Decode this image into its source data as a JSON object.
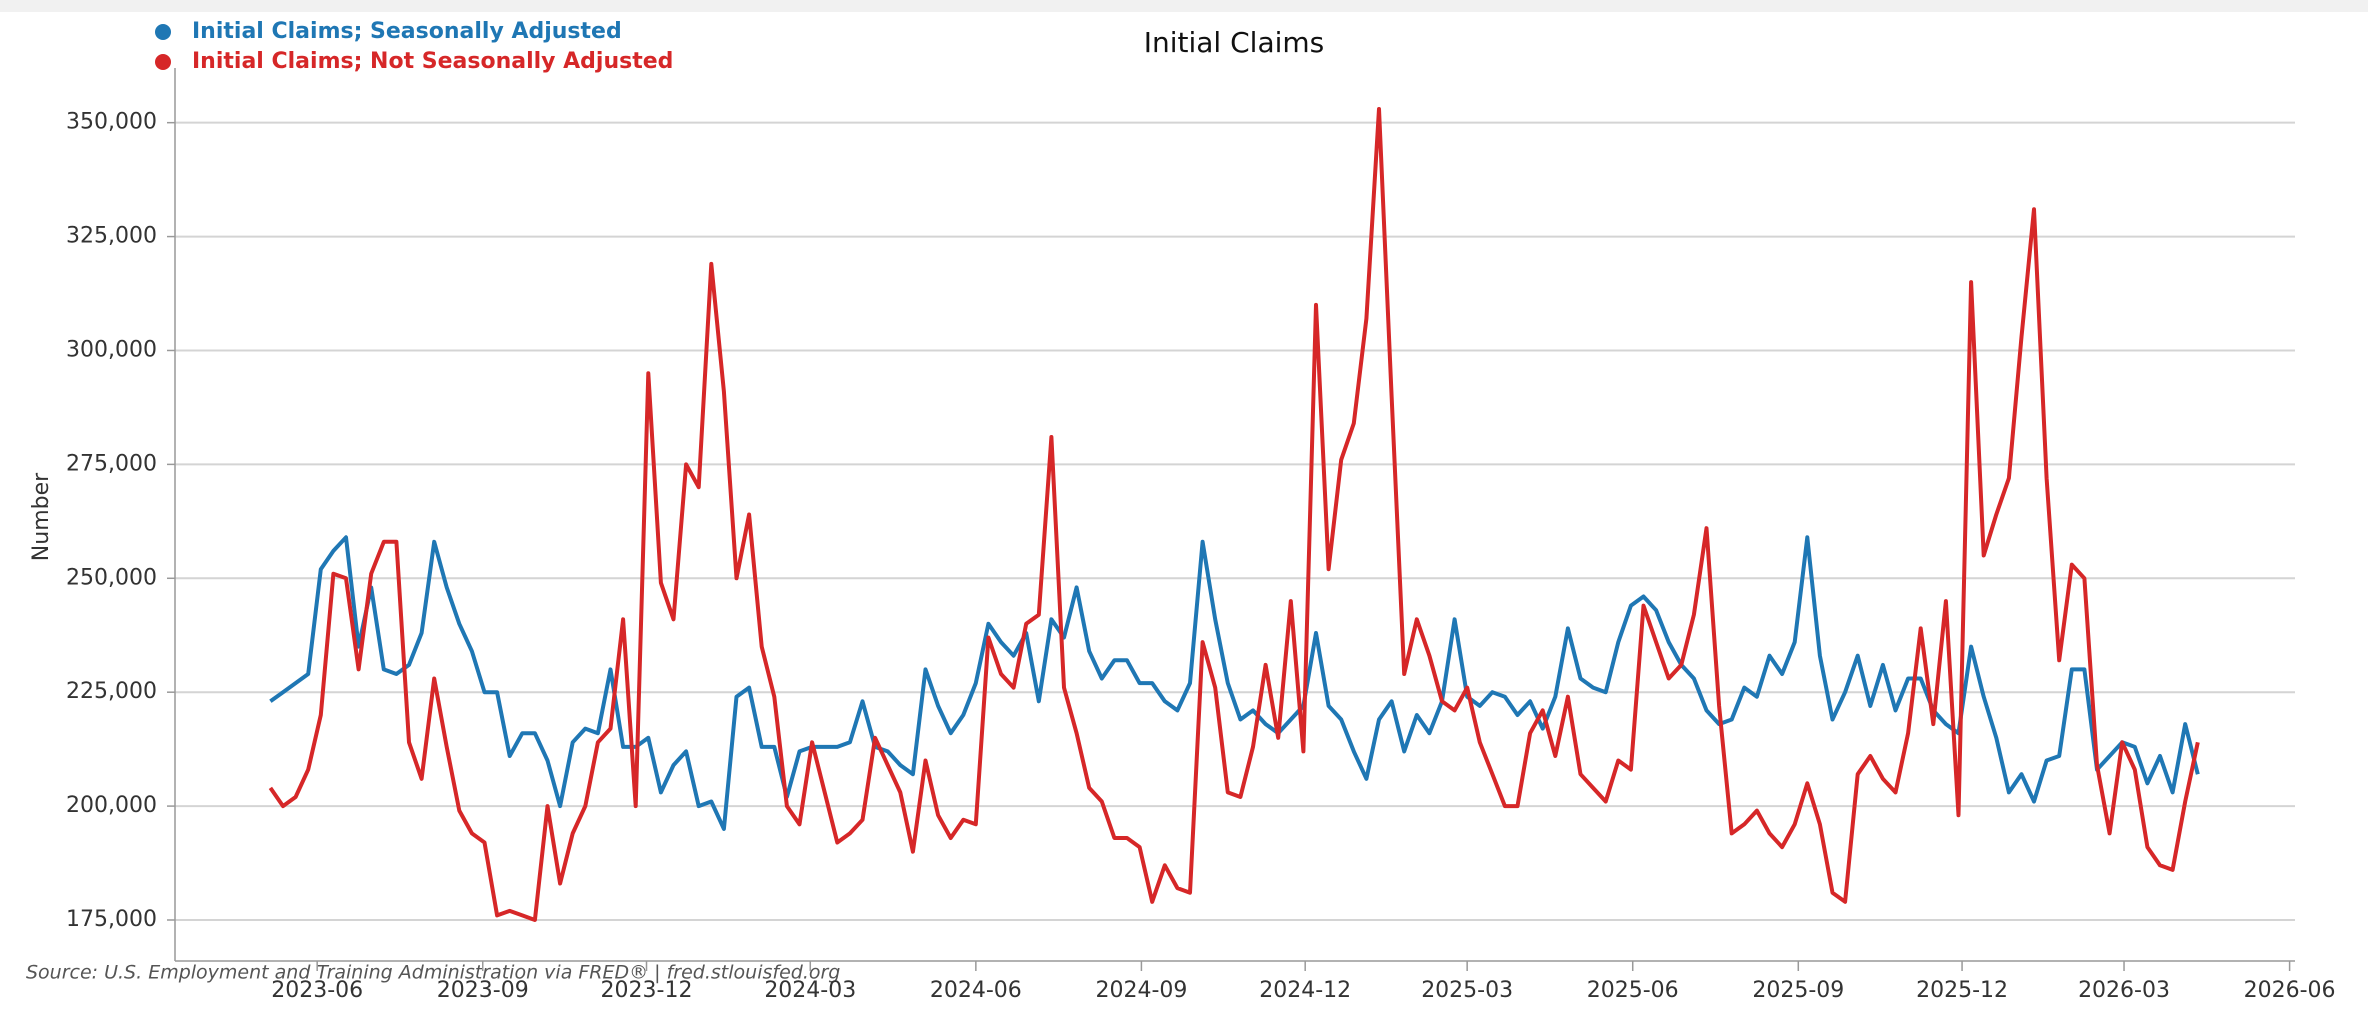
{
  "chart_data": {
    "type": "line",
    "title": "Initial Claims",
    "y_label": "Number",
    "source": "Source: U.S. Employment and Training Administration via FRED®  |  fred.stlouisfed.org",
    "x": [
      "2023-05-06",
      "2023-05-13",
      "2023-05-20",
      "2023-05-27",
      "2023-06-03",
      "2023-06-10",
      "2023-06-17",
      "2023-06-24",
      "2023-07-01",
      "2023-07-08",
      "2023-07-15",
      "2023-07-22",
      "2023-07-29",
      "2023-08-05",
      "2023-08-12",
      "2023-08-19",
      "2023-08-26",
      "2023-09-02",
      "2023-09-09",
      "2023-09-16",
      "2023-09-23",
      "2023-09-30",
      "2023-10-07",
      "2023-10-14",
      "2023-10-21",
      "2023-10-28",
      "2023-11-04",
      "2023-11-11",
      "2023-11-18",
      "2023-11-25",
      "2023-12-02",
      "2023-12-09",
      "2023-12-16",
      "2023-12-23",
      "2023-12-30",
      "2024-01-06",
      "2024-01-13",
      "2024-01-20",
      "2024-01-27",
      "2024-02-03",
      "2024-02-10",
      "2024-02-17",
      "2024-02-24",
      "2024-03-02",
      "2024-03-09",
      "2024-03-16",
      "2024-03-23",
      "2024-03-30",
      "2024-04-06",
      "2024-04-13",
      "2024-04-20",
      "2024-04-27",
      "2024-05-04",
      "2024-05-11",
      "2024-05-18",
      "2024-05-25",
      "2024-06-01",
      "2024-06-08",
      "2024-06-15",
      "2024-06-22",
      "2024-06-29",
      "2024-07-06",
      "2024-07-13",
      "2024-07-20",
      "2024-07-27",
      "2024-08-03",
      "2024-08-10",
      "2024-08-17",
      "2024-08-24",
      "2024-08-31",
      "2024-09-07",
      "2024-09-14",
      "2024-09-21",
      "2024-09-28",
      "2024-10-05",
      "2024-10-12",
      "2024-10-19",
      "2024-10-26",
      "2024-11-02",
      "2024-11-09",
      "2024-11-16",
      "2024-11-23",
      "2024-11-30",
      "2024-12-07",
      "2024-12-14",
      "2024-12-21",
      "2024-12-28",
      "2025-01-04",
      "2025-01-11",
      "2025-01-18",
      "2025-01-25",
      "2025-02-01",
      "2025-02-08",
      "2025-02-15",
      "2025-02-22",
      "2025-03-01",
      "2025-03-08",
      "2025-03-15",
      "2025-03-22",
      "2025-03-29",
      "2025-04-05",
      "2025-04-12",
      "2025-04-19",
      "2025-04-26",
      "2025-05-03",
      "2025-05-10",
      "2025-05-17",
      "2025-05-24",
      "2025-05-31",
      "2025-06-07",
      "2025-06-14",
      "2025-06-21",
      "2025-06-28",
      "2025-07-05",
      "2025-07-12",
      "2025-07-19",
      "2025-07-26",
      "2025-08-02",
      "2025-08-09",
      "2025-08-16",
      "2025-08-23",
      "2025-08-30",
      "2025-09-06",
      "2025-09-13",
      "2025-09-20",
      "2025-09-27",
      "2025-10-04",
      "2025-10-11",
      "2025-10-18",
      "2025-10-25",
      "2025-11-01",
      "2025-11-08",
      "2025-11-15",
      "2025-11-22",
      "2025-11-29",
      "2025-12-06",
      "2025-12-13",
      "2025-12-20",
      "2025-12-27",
      "2026-01-03",
      "2026-01-10",
      "2026-01-17",
      "2026-01-24",
      "2026-01-31",
      "2026-02-07",
      "2026-02-14",
      "2026-02-21",
      "2026-02-28",
      "2026-03-07",
      "2026-03-14",
      "2026-03-21",
      "2026-03-28",
      "2026-04-04",
      "2026-04-11"
    ],
    "series": [
      {
        "name": "Initial Claims; Seasonally Adjusted",
        "color": "#1f77b4",
        "values": [
          223000,
          225000,
          227000,
          229000,
          252000,
          256000,
          259000,
          235000,
          248000,
          230000,
          229000,
          231000,
          238000,
          258000,
          248000,
          240000,
          234000,
          225000,
          225000,
          211000,
          216000,
          216000,
          210000,
          200000,
          214000,
          217000,
          216000,
          230000,
          213000,
          213000,
          215000,
          203000,
          209000,
          212000,
          200000,
          201000,
          195000,
          224000,
          226000,
          213000,
          213000,
          202000,
          212000,
          213000,
          213000,
          213000,
          214000,
          223000,
          213000,
          212000,
          209000,
          207000,
          230000,
          222000,
          216000,
          220000,
          227000,
          240000,
          236000,
          233000,
          238000,
          223000,
          241000,
          237000,
          248000,
          234000,
          228000,
          232000,
          232000,
          227000,
          227000,
          223000,
          221000,
          227000,
          258000,
          241000,
          227000,
          219000,
          221000,
          218000,
          216000,
          219000,
          222000,
          238000,
          222000,
          219000,
          212000,
          206000,
          219000,
          223000,
          212000,
          220000,
          216000,
          223000,
          241000,
          224000,
          222000,
          225000,
          224000,
          220000,
          223000,
          217000,
          224000,
          239000,
          228000,
          226000,
          225000,
          236000,
          244000,
          246000,
          243000,
          236000,
          231000,
          228000,
          221000,
          218000,
          219000,
          226000,
          224000,
          233000,
          229000,
          236000,
          259000,
          233000,
          219000,
          225000,
          233000,
          222000,
          231000,
          221000,
          228000,
          228000,
          221000,
          218000,
          216000,
          235000,
          224000,
          215000,
          203000,
          207000,
          201000,
          210000,
          211000,
          230000,
          230000,
          208000,
          211000,
          214000,
          213000,
          205000,
          211000,
          203000,
          218000,
          207000
        ]
      },
      {
        "name": "Initial Claims; Not Seasonally Adjusted",
        "color": "#d62728",
        "values": [
          204000,
          200000,
          202000,
          208000,
          220000,
          251000,
          250000,
          230000,
          251000,
          258000,
          258000,
          214000,
          206000,
          228000,
          213000,
          199000,
          194000,
          192000,
          176000,
          177000,
          176000,
          175000,
          200000,
          183000,
          194000,
          200000,
          214000,
          217000,
          241000,
          200000,
          295000,
          249000,
          241000,
          275000,
          270000,
          319000,
          291000,
          250000,
          264000,
          235000,
          224000,
          200000,
          196000,
          214000,
          203000,
          192000,
          194000,
          197000,
          215000,
          209000,
          203000,
          190000,
          210000,
          198000,
          193000,
          197000,
          196000,
          237000,
          229000,
          226000,
          240000,
          242000,
          281000,
          226000,
          216000,
          204000,
          201000,
          193000,
          193000,
          191000,
          179000,
          187000,
          182000,
          181000,
          236000,
          226000,
          203000,
          202000,
          213000,
          231000,
          215000,
          245000,
          212000,
          310000,
          252000,
          276000,
          284000,
          307000,
          353000,
          290000,
          229000,
          241000,
          233000,
          223000,
          221000,
          226000,
          214000,
          207000,
          200000,
          200000,
          216000,
          221000,
          211000,
          224000,
          207000,
          204000,
          201000,
          210000,
          208000,
          244000,
          236000,
          228000,
          231000,
          242000,
          261000,
          222000,
          194000,
          196000,
          199000,
          194000,
          191000,
          196000,
          205000,
          196000,
          181000,
          179000,
          207000,
          211000,
          206000,
          203000,
          216000,
          239000,
          218000,
          245000,
          198000,
          315000,
          255000,
          264000,
          272000,
          303000,
          331000,
          272000,
          232000,
          253000,
          250000,
          209000,
          194000,
          214000,
          208000,
          191000,
          187000,
          186000,
          201000,
          214000
        ]
      }
    ],
    "xlim": [
      "2023-03-14",
      "2026-06-04"
    ],
    "xticks": [
      "2023-06",
      "2023-09",
      "2023-12",
      "2024-03",
      "2024-06",
      "2024-09",
      "2024-12",
      "2025-03",
      "2025-06",
      "2025-09",
      "2025-12",
      "2026-03",
      "2026-06"
    ],
    "ylim": [
      166000,
      362000
    ],
    "yticks": [
      {
        "value": 175000,
        "label": "175,000"
      },
      {
        "value": 200000,
        "label": "200,000"
      },
      {
        "value": 225000,
        "label": "225,000"
      },
      {
        "value": 250000,
        "label": "250,000"
      },
      {
        "value": 275000,
        "label": "275,000"
      },
      {
        "value": 300000,
        "label": "300,000"
      },
      {
        "value": 325000,
        "label": "325,000"
      },
      {
        "value": 350000,
        "label": "350,000"
      }
    ],
    "grid": true,
    "legend": "top-left"
  }
}
